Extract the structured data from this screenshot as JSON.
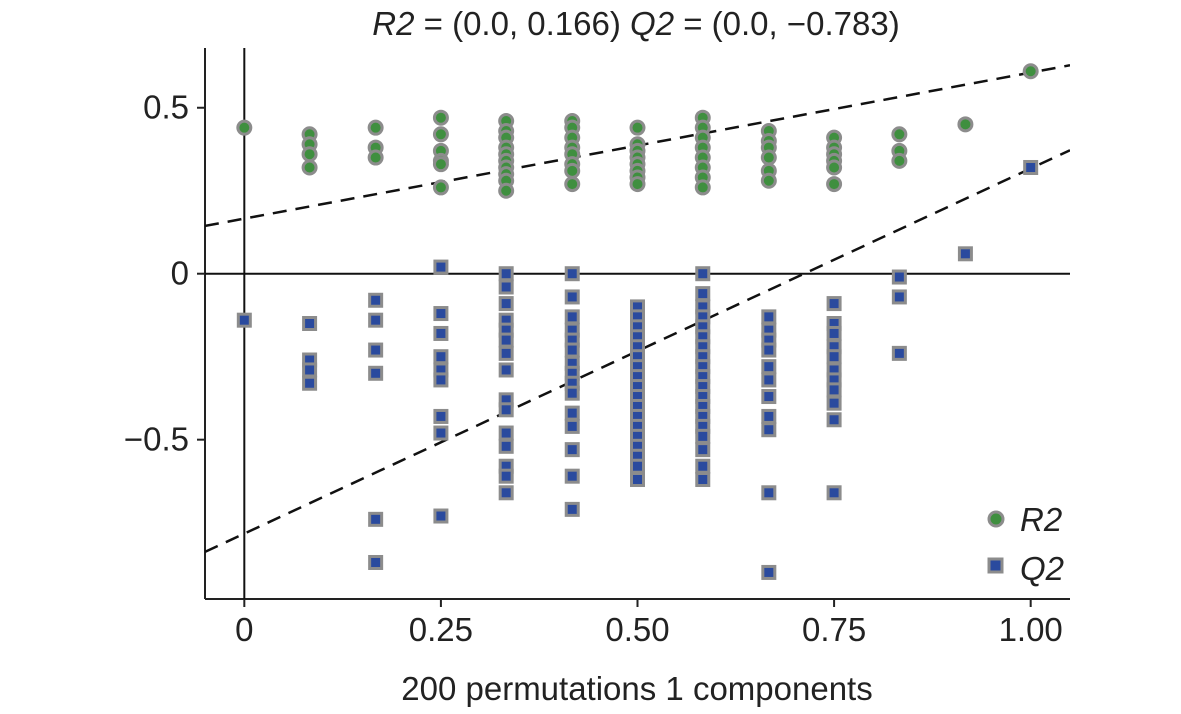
{
  "chart_data": {
    "type": "scatter",
    "title": {
      "r2_label": "R2",
      "r2_value": " = (0.0, 0.166) ",
      "q2_label": "Q2",
      "q2_value": " = (0.0, −0.783)"
    },
    "xlabel": "200 permutations 1 components",
    "ylabel": "",
    "xlim": [
      -0.05,
      1.05
    ],
    "ylim": [
      -0.98,
      0.68
    ],
    "x_ticks": [
      {
        "value": 0,
        "label": "0"
      },
      {
        "value": 0.25,
        "label": "0.25"
      },
      {
        "value": 0.5,
        "label": "0.50"
      },
      {
        "value": 0.75,
        "label": "0.75"
      },
      {
        "value": 1.0,
        "label": "1.00"
      }
    ],
    "y_ticks": [
      {
        "value": 0.5,
        "label": "0.5"
      },
      {
        "value": 0,
        "label": "0"
      },
      {
        "value": -0.5,
        "label": "−0.5"
      }
    ],
    "grid": false,
    "legend": {
      "placement": "bottom-right"
    },
    "series": [
      {
        "name": "R2",
        "marker": "circle",
        "fill": "#3f8f3f",
        "stroke": "#8c8c8c",
        "points": [
          [
            0.0,
            0.44
          ],
          [
            0.083,
            0.42
          ],
          [
            0.083,
            0.39
          ],
          [
            0.083,
            0.36
          ],
          [
            0.083,
            0.32
          ],
          [
            0.167,
            0.44
          ],
          [
            0.167,
            0.38
          ],
          [
            0.167,
            0.35
          ],
          [
            0.25,
            0.47
          ],
          [
            0.25,
            0.42
          ],
          [
            0.25,
            0.37
          ],
          [
            0.25,
            0.34
          ],
          [
            0.25,
            0.33
          ],
          [
            0.25,
            0.26
          ],
          [
            0.333,
            0.46
          ],
          [
            0.333,
            0.43
          ],
          [
            0.333,
            0.41
          ],
          [
            0.333,
            0.38
          ],
          [
            0.333,
            0.36
          ],
          [
            0.333,
            0.34
          ],
          [
            0.333,
            0.32
          ],
          [
            0.333,
            0.3
          ],
          [
            0.333,
            0.28
          ],
          [
            0.333,
            0.25
          ],
          [
            0.417,
            0.46
          ],
          [
            0.417,
            0.44
          ],
          [
            0.417,
            0.41
          ],
          [
            0.417,
            0.38
          ],
          [
            0.417,
            0.36
          ],
          [
            0.417,
            0.33
          ],
          [
            0.417,
            0.31
          ],
          [
            0.417,
            0.27
          ],
          [
            0.5,
            0.44
          ],
          [
            0.5,
            0.39
          ],
          [
            0.5,
            0.37
          ],
          [
            0.5,
            0.35
          ],
          [
            0.5,
            0.33
          ],
          [
            0.5,
            0.31
          ],
          [
            0.5,
            0.29
          ],
          [
            0.5,
            0.27
          ],
          [
            0.583,
            0.47
          ],
          [
            0.583,
            0.44
          ],
          [
            0.583,
            0.41
          ],
          [
            0.583,
            0.38
          ],
          [
            0.583,
            0.35
          ],
          [
            0.583,
            0.32
          ],
          [
            0.583,
            0.29
          ],
          [
            0.583,
            0.26
          ],
          [
            0.667,
            0.43
          ],
          [
            0.667,
            0.4
          ],
          [
            0.667,
            0.38
          ],
          [
            0.667,
            0.35
          ],
          [
            0.667,
            0.31
          ],
          [
            0.667,
            0.28
          ],
          [
            0.75,
            0.41
          ],
          [
            0.75,
            0.38
          ],
          [
            0.75,
            0.36
          ],
          [
            0.75,
            0.34
          ],
          [
            0.75,
            0.32
          ],
          [
            0.75,
            0.27
          ],
          [
            0.833,
            0.42
          ],
          [
            0.833,
            0.37
          ],
          [
            0.833,
            0.34
          ],
          [
            0.917,
            0.45
          ],
          [
            1.0,
            0.61
          ]
        ]
      },
      {
        "name": "Q2",
        "marker": "square",
        "fill": "#2a4a9e",
        "stroke": "#8c8c8c",
        "points": [
          [
            0.0,
            -0.14
          ],
          [
            0.083,
            -0.15
          ],
          [
            0.083,
            -0.26
          ],
          [
            0.083,
            -0.29
          ],
          [
            0.083,
            -0.33
          ],
          [
            0.167,
            -0.08
          ],
          [
            0.167,
            -0.14
          ],
          [
            0.167,
            -0.23
          ],
          [
            0.167,
            -0.3
          ],
          [
            0.167,
            -0.74
          ],
          [
            0.167,
            -0.87
          ],
          [
            0.25,
            0.02
          ],
          [
            0.25,
            -0.12
          ],
          [
            0.25,
            -0.18
          ],
          [
            0.25,
            -0.25
          ],
          [
            0.25,
            -0.29
          ],
          [
            0.25,
            -0.32
          ],
          [
            0.25,
            -0.43
          ],
          [
            0.25,
            -0.48
          ],
          [
            0.25,
            -0.73
          ],
          [
            0.333,
            0.0
          ],
          [
            0.333,
            -0.04
          ],
          [
            0.333,
            -0.09
          ],
          [
            0.333,
            -0.14
          ],
          [
            0.333,
            -0.17
          ],
          [
            0.333,
            -0.2
          ],
          [
            0.333,
            -0.24
          ],
          [
            0.333,
            -0.29
          ],
          [
            0.333,
            -0.38
          ],
          [
            0.333,
            -0.41
          ],
          [
            0.333,
            -0.48
          ],
          [
            0.333,
            -0.52
          ],
          [
            0.333,
            -0.58
          ],
          [
            0.333,
            -0.61
          ],
          [
            0.333,
            -0.66
          ],
          [
            0.417,
            0.0
          ],
          [
            0.417,
            -0.07
          ],
          [
            0.417,
            -0.13
          ],
          [
            0.417,
            -0.17
          ],
          [
            0.417,
            -0.2
          ],
          [
            0.417,
            -0.23
          ],
          [
            0.417,
            -0.27
          ],
          [
            0.417,
            -0.3
          ],
          [
            0.417,
            -0.33
          ],
          [
            0.417,
            -0.36
          ],
          [
            0.417,
            -0.42
          ],
          [
            0.417,
            -0.46
          ],
          [
            0.417,
            -0.53
          ],
          [
            0.417,
            -0.61
          ],
          [
            0.417,
            -0.71
          ],
          [
            0.5,
            -0.1
          ],
          [
            0.5,
            -0.13
          ],
          [
            0.5,
            -0.16
          ],
          [
            0.5,
            -0.19
          ],
          [
            0.5,
            -0.22
          ],
          [
            0.5,
            -0.25
          ],
          [
            0.5,
            -0.28
          ],
          [
            0.5,
            -0.31
          ],
          [
            0.5,
            -0.34
          ],
          [
            0.5,
            -0.37
          ],
          [
            0.5,
            -0.4
          ],
          [
            0.5,
            -0.43
          ],
          [
            0.5,
            -0.46
          ],
          [
            0.5,
            -0.49
          ],
          [
            0.5,
            -0.52
          ],
          [
            0.5,
            -0.55
          ],
          [
            0.5,
            -0.58
          ],
          [
            0.5,
            -0.62
          ],
          [
            0.583,
            0.0
          ],
          [
            0.583,
            -0.06
          ],
          [
            0.583,
            -0.1
          ],
          [
            0.583,
            -0.13
          ],
          [
            0.583,
            -0.16
          ],
          [
            0.583,
            -0.19
          ],
          [
            0.583,
            -0.22
          ],
          [
            0.583,
            -0.25
          ],
          [
            0.583,
            -0.28
          ],
          [
            0.583,
            -0.31
          ],
          [
            0.583,
            -0.34
          ],
          [
            0.583,
            -0.37
          ],
          [
            0.583,
            -0.4
          ],
          [
            0.583,
            -0.43
          ],
          [
            0.583,
            -0.46
          ],
          [
            0.583,
            -0.49
          ],
          [
            0.583,
            -0.53
          ],
          [
            0.583,
            -0.58
          ],
          [
            0.583,
            -0.62
          ],
          [
            0.667,
            -0.13
          ],
          [
            0.667,
            -0.17
          ],
          [
            0.667,
            -0.2
          ],
          [
            0.667,
            -0.23
          ],
          [
            0.667,
            -0.28
          ],
          [
            0.667,
            -0.32
          ],
          [
            0.667,
            -0.37
          ],
          [
            0.667,
            -0.43
          ],
          [
            0.667,
            -0.47
          ],
          [
            0.667,
            -0.66
          ],
          [
            0.667,
            -0.9
          ],
          [
            0.75,
            -0.09
          ],
          [
            0.75,
            -0.15
          ],
          [
            0.75,
            -0.18
          ],
          [
            0.75,
            -0.22
          ],
          [
            0.75,
            -0.25
          ],
          [
            0.75,
            -0.29
          ],
          [
            0.75,
            -0.32
          ],
          [
            0.75,
            -0.35
          ],
          [
            0.75,
            -0.39
          ],
          [
            0.75,
            -0.44
          ],
          [
            0.75,
            -0.66
          ],
          [
            0.833,
            -0.01
          ],
          [
            0.833,
            -0.07
          ],
          [
            0.833,
            -0.24
          ],
          [
            0.917,
            0.06
          ],
          [
            1.0,
            0.32
          ]
        ]
      }
    ],
    "regression_lines": [
      {
        "series": "R2",
        "intercept": 0.166,
        "slope": 0.44,
        "style": "dashed"
      },
      {
        "series": "Q2",
        "intercept": -0.783,
        "slope": 1.1,
        "style": "dashed"
      }
    ]
  }
}
